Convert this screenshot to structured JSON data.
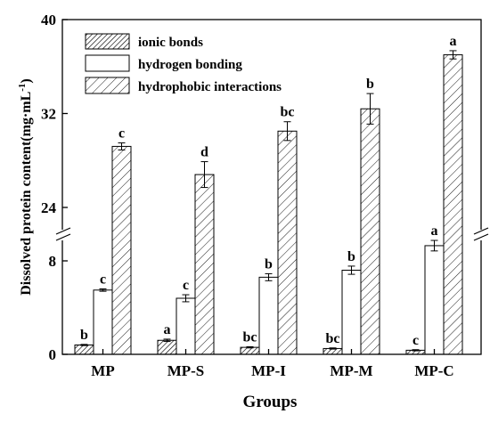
{
  "chart_data": {
    "type": "bar",
    "xlabel": "Groups",
    "ylabel": "Dissolved protein content(mg·mL",
    "ylabel_sup": "-1",
    "ylabel_close": ")",
    "y_ticks": [
      "0",
      "8",
      "24",
      "32",
      "40"
    ],
    "y_break": {
      "lower": [
        0,
        12
      ],
      "upper": [
        21,
        40
      ]
    },
    "categories": [
      "MP",
      "MP-S",
      "MP-I",
      "MP-M",
      "MP-C"
    ],
    "legend_position": "top-left",
    "series": [
      {
        "name": "ionic bonds",
        "pattern": "dense-hatch",
        "values": [
          0.8,
          1.2,
          0.6,
          0.5,
          0.35
        ],
        "errors": [
          0.05,
          0.1,
          0.05,
          0.05,
          0.05
        ],
        "labels": [
          "b",
          "a",
          "bc",
          "bc",
          "c"
        ]
      },
      {
        "name": "hydrogen bonding",
        "pattern": "white",
        "values": [
          5.5,
          4.8,
          6.6,
          7.2,
          9.3
        ],
        "errors": [
          0.1,
          0.3,
          0.3,
          0.35,
          0.45
        ],
        "labels": [
          "c",
          "c",
          "b",
          "b",
          "a"
        ]
      },
      {
        "name": "hydrophobic interactions",
        "pattern": "sparse-hatch",
        "values": [
          29.2,
          26.8,
          30.5,
          32.4,
          37.0
        ],
        "errors": [
          0.3,
          1.1,
          0.8,
          1.3,
          0.35
        ],
        "labels": [
          "c",
          "d",
          "bc",
          "b",
          "a"
        ]
      }
    ]
  }
}
